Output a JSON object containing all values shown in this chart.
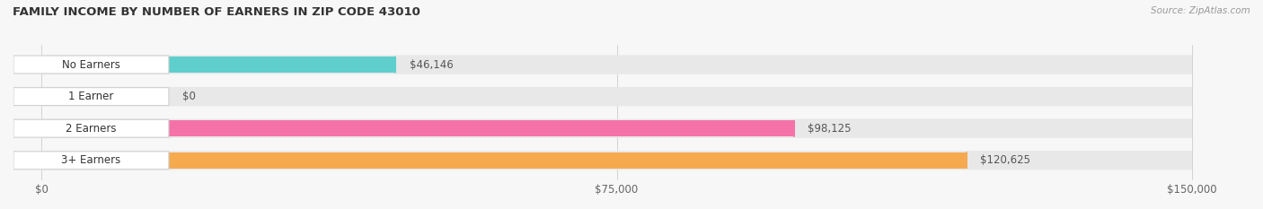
{
  "title": "FAMILY INCOME BY NUMBER OF EARNERS IN ZIP CODE 43010",
  "source": "Source: ZipAtlas.com",
  "categories": [
    "No Earners",
    "1 Earner",
    "2 Earners",
    "3+ Earners"
  ],
  "values": [
    46146,
    0,
    98125,
    120625
  ],
  "bar_colors": [
    "#5ecfcc",
    "#b3aee0",
    "#f472a8",
    "#f5aa50"
  ],
  "bar_bg_color": "#e8e8e8",
  "max_value": 150000,
  "x_ticks": [
    0,
    75000,
    150000
  ],
  "x_tick_labels": [
    "$0",
    "$75,000",
    "$150,000"
  ],
  "value_labels": [
    "$46,146",
    "$0",
    "$98,125",
    "$120,625"
  ],
  "figsize": [
    14.06,
    2.33
  ],
  "dpi": 100,
  "background_color": "#f7f7f7",
  "bar_row_bg": "#f0f0f0"
}
